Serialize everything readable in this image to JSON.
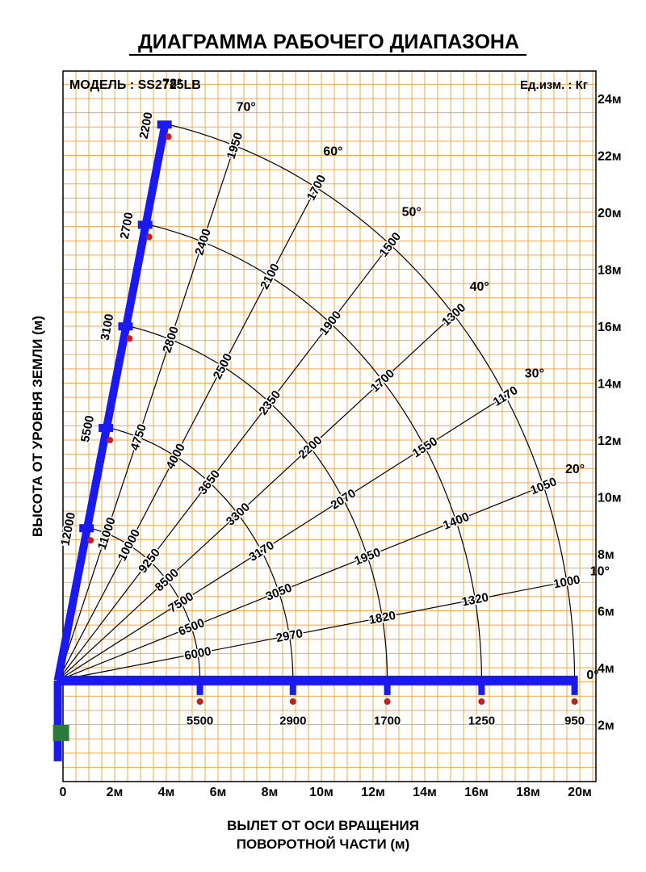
{
  "header": {
    "title": "ДИАГРАММА РАБОЧЕГО ДИАПАЗОНА",
    "model": "МОДЕЛЬ : SS2725LB",
    "unit": "Ед.изм. : Кг"
  },
  "axes": {
    "y_label": "ВЫСОТА ОТ УРОВНЯ ЗЕМЛИ (м)",
    "x_label": [
      "ВЫЛЕТ ОТ ОСИ ВРАЩЕНИЯ",
      "ПОВОРОТНОЙ ЧАСТИ (м)"
    ],
    "x_ticks": [
      "0",
      "2м",
      "4м",
      "6м",
      "8м",
      "10м",
      "12м",
      "14м",
      "16м",
      "18м",
      "20м"
    ],
    "y_ticks": [
      "2м",
      "4м",
      "6м",
      "8м",
      "10м",
      "12м",
      "14м",
      "16м",
      "18м",
      "20м",
      "22м",
      "24м"
    ]
  },
  "angles": [
    {
      "label": "78°",
      "loads": [
        2200,
        2700,
        3100,
        5500,
        12000
      ]
    },
    {
      "label": "70°",
      "loads": [
        1950,
        2400,
        2800,
        4750,
        11000
      ]
    },
    {
      "label": "60°",
      "loads": [
        1700,
        2100,
        2500,
        4000,
        10000
      ]
    },
    {
      "label": "50°",
      "loads": [
        1500,
        1900,
        2350,
        3650,
        9250
      ]
    },
    {
      "label": "40°",
      "loads": [
        1300,
        1700,
        2200,
        3300,
        8500
      ]
    },
    {
      "label": "30°",
      "loads": [
        1170,
        1550,
        2070,
        3170,
        7500
      ]
    },
    {
      "label": "20°",
      "loads": [
        1050,
        1400,
        1950,
        3050,
        6500
      ]
    },
    {
      "label": "10°",
      "loads": [
        1000,
        1320,
        1820,
        2970,
        6000
      ]
    },
    {
      "label": "0°",
      "loads": [
        950,
        1250,
        1700,
        2900,
        5500
      ]
    }
  ]
}
